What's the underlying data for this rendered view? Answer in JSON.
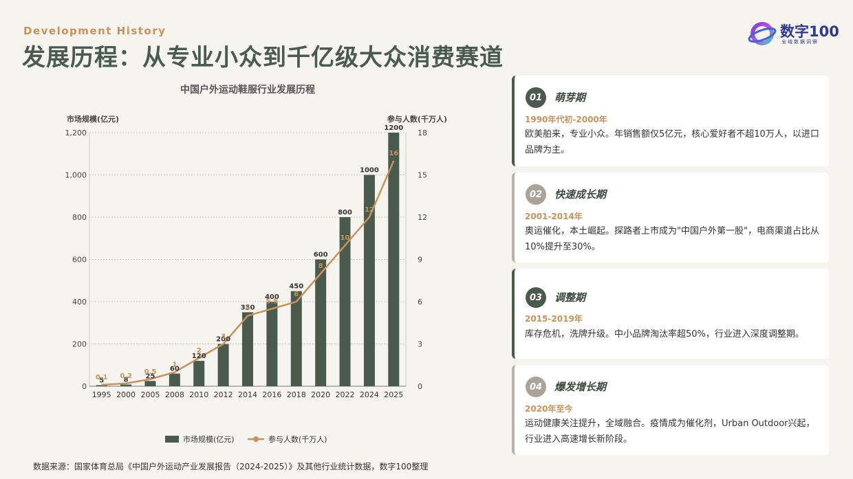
{
  "header": {
    "subtitle": "Development History",
    "title": "发展历程：从专业小众到千亿级大众消费赛道"
  },
  "logo": {
    "name": "数字100",
    "tagline": "全域数据洞察"
  },
  "chart_data": {
    "type": "bar",
    "title": "中国户外运动鞋服行业发展历程",
    "categories": [
      "1995",
      "2000",
      "2005",
      "2008",
      "2010",
      "2012",
      "2014",
      "2016",
      "2018",
      "2020",
      "2022",
      "2024",
      "2025"
    ],
    "ylabel": "市场规模(亿元)",
    "y2label": "参与人数(千万人)",
    "ylim": [
      0,
      1200
    ],
    "y2lim": [
      0,
      18
    ],
    "yticks": [
      "0",
      "200",
      "400",
      "600",
      "800",
      "1,000",
      "1,200"
    ],
    "y2ticks": [
      "0",
      "3",
      "6",
      "9",
      "12",
      "15",
      "18"
    ],
    "grid": true,
    "legend_position": "bottom",
    "series": [
      {
        "name": "市场规模(亿元)",
        "type": "bar",
        "axis": "left",
        "values": [
          5,
          8,
          25,
          60,
          120,
          200,
          350,
          400,
          450,
          600,
          800,
          1000,
          1200
        ],
        "labels": [
          "5",
          "8",
          "25",
          "60",
          "120",
          "200",
          "350",
          "400",
          "450",
          "600",
          "800",
          "1000",
          "1200"
        ]
      },
      {
        "name": "参与人数(千万人)",
        "type": "line",
        "axis": "right",
        "values": [
          0.1,
          0.2,
          0.5,
          1,
          2,
          3,
          5,
          5.5,
          6,
          8,
          10,
          12,
          16
        ],
        "labels": [
          "0.1",
          "0.2",
          "0.5",
          "1",
          "2",
          "3",
          "5",
          "5.5",
          "6",
          "8",
          "10",
          "12",
          "16"
        ]
      }
    ],
    "colors": {
      "bar": "#4a5a4c",
      "line": "#c8925a",
      "grid": "#cfcac0",
      "axis": "#777777"
    }
  },
  "stages": [
    {
      "num": "01",
      "name": "萌芽期",
      "period": "1990年代初-2000年",
      "desc": "欧美舶来，专业小众。年销售额仅5亿元，核心爱好者不超10万人，以进口品牌为主。"
    },
    {
      "num": "02",
      "name": "快速成长期",
      "period": "2001-2014年",
      "desc": "奥运催化，本土崛起。探路者上市成为\"中国户外第一股\"，电商渠道占比从10%提升至30%。"
    },
    {
      "num": "03",
      "name": "调整期",
      "period": "2015-2019年",
      "desc": "库存危机，洗牌升级。中小品牌淘汰率超50%，行业进入深度调整期。"
    },
    {
      "num": "04",
      "name": "爆发增长期",
      "period": "2020年至今",
      "desc": "运动健康关注提升，全域融合。疫情成为催化剂，Urban Outdoor兴起，行业进入高速增长新阶段。"
    }
  ],
  "source": "数据来源：国家体育总局《中国户外运动产业发展报告（2024-2025）》及其他行业统计数据，数字100整理"
}
